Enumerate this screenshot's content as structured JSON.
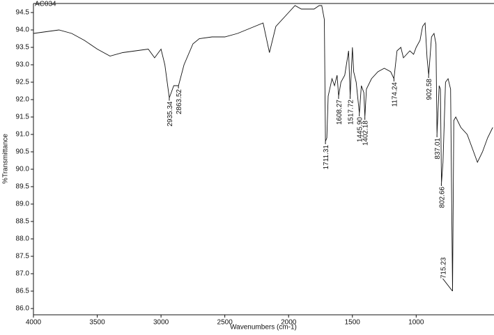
{
  "chart_data": {
    "type": "line",
    "title": "AC034",
    "x_label": "Wavenumbers (cm-1)",
    "y_label": "%Transmittance",
    "xlim": [
      4000,
      390
    ],
    "ylim": [
      85.82,
      94.76
    ],
    "xticks": [
      4000,
      3500,
      3000,
      2500,
      2000,
      1500,
      1000
    ],
    "yticks": [
      {
        "value": 86,
        "label": "86.0"
      },
      86.5,
      {
        "value": 87,
        "label": "87.0"
      },
      87.5,
      {
        "value": 88,
        "label": "88.0"
      },
      88.5,
      {
        "value": 89,
        "label": "89.0"
      },
      89.5,
      {
        "value": 90,
        "label": "90.0"
      },
      90.5,
      {
        "value": 91,
        "label": "91.0"
      },
      91.5,
      {
        "value": 92,
        "label": "92.0"
      },
      92.5,
      {
        "value": 93,
        "label": "93.0"
      },
      93.5,
      {
        "value": 94,
        "label": "94.0"
      },
      94.5
    ],
    "series": [
      {
        "color": "#111111",
        "x": [
          4000,
          3900,
          3800,
          3700,
          3600,
          3500,
          3400,
          3300,
          3200,
          3100,
          3050,
          3000,
          2970,
          2935,
          2900,
          2863,
          2820,
          2750,
          2700,
          2600,
          2500,
          2400,
          2300,
          2200,
          2150,
          2100,
          2000,
          1950,
          1900,
          1800,
          1760,
          1740,
          1720,
          1711,
          1700,
          1690,
          1660,
          1640,
          1620,
          1608,
          1590,
          1560,
          1530,
          1517,
          1500,
          1490,
          1470,
          1445,
          1430,
          1410,
          1402,
          1390,
          1350,
          1300,
          1250,
          1200,
          1174,
          1150,
          1120,
          1100,
          1050,
          1020,
          1000,
          970,
          950,
          930,
          915,
          902,
          880,
          860,
          845,
          837,
          820,
          810,
          802,
          790,
          770,
          750,
          730,
          715,
          705,
          690,
          650,
          600,
          560,
          520,
          480,
          440,
          400
        ],
        "values": [
          93.9,
          93.95,
          94.0,
          93.9,
          93.7,
          93.45,
          93.25,
          93.35,
          93.4,
          93.45,
          93.2,
          93.45,
          93.0,
          92.05,
          92.4,
          92.4,
          93.0,
          93.6,
          93.75,
          93.8,
          93.8,
          93.9,
          94.05,
          94.2,
          93.35,
          94.1,
          94.5,
          94.7,
          94.6,
          94.6,
          94.7,
          94.7,
          94.3,
          90.8,
          90.9,
          92.1,
          92.6,
          92.4,
          92.7,
          92.1,
          92.5,
          92.7,
          93.4,
          92.1,
          93.5,
          92.8,
          92.5,
          91.6,
          92.4,
          92.2,
          91.5,
          92.3,
          92.6,
          92.8,
          92.9,
          92.8,
          92.6,
          93.4,
          93.5,
          93.2,
          93.4,
          93.3,
          93.5,
          93.7,
          94.1,
          94.2,
          93.2,
          92.7,
          93.8,
          93.9,
          93.6,
          91.0,
          92.4,
          92.3,
          89.6,
          90.2,
          92.5,
          92.6,
          92.3,
          86.5,
          91.4,
          91.5,
          91.2,
          91.0,
          90.6,
          90.2,
          90.5,
          90.9,
          91.2
        ]
      }
    ],
    "peaks": [
      {
        "x": 2935.34,
        "y": 92.05,
        "label": "2935.34"
      },
      {
        "x": 2863.52,
        "y": 92.4,
        "label": "2863.52"
      },
      {
        "x": 1711.31,
        "y": 90.8,
        "label": "1711.31"
      },
      {
        "x": 1608.27,
        "y": 92.1,
        "label": "1608.27"
      },
      {
        "x": 1517.72,
        "y": 92.1,
        "label": "1517.72"
      },
      {
        "x": 1445.9,
        "y": 91.6,
        "label": "1445.90"
      },
      {
        "x": 1402.18,
        "y": 91.5,
        "label": "1402.18"
      },
      {
        "x": 1174.24,
        "y": 92.6,
        "label": "1174.24"
      },
      {
        "x": 902.58,
        "y": 92.7,
        "label": "902.58"
      },
      {
        "x": 837.01,
        "y": 91.0,
        "label": "837.01"
      },
      {
        "x": 802.66,
        "y": 89.6,
        "label": "802.66"
      },
      {
        "x": 715.23,
        "y": 86.5,
        "label": "715.23"
      }
    ]
  }
}
